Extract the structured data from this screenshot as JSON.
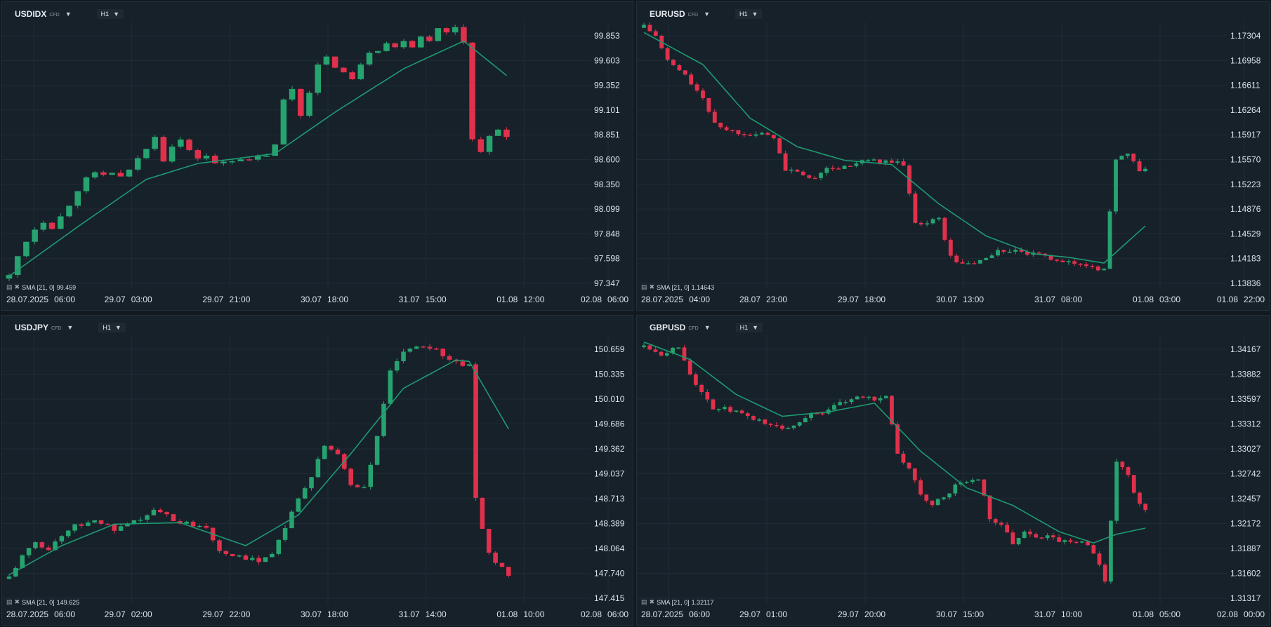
{
  "colors": {
    "up": "#26a36f",
    "down": "#e0314c",
    "sma": "#1e9a70",
    "grid": "#202c35"
  },
  "panels": [
    {
      "symbol": "USDIDX",
      "type_badge": "CFD",
      "timeframe": "H1",
      "indicator": {
        "label": "SMA [21, 0]",
        "value": "99.459"
      },
      "y_ticks": [
        "99.853",
        "99.603",
        "99.352",
        "99.101",
        "98.851",
        "98.600",
        "98.350",
        "98.099",
        "97.848",
        "97.598",
        "97.347"
      ],
      "x_ticks": [
        {
          "date": "28.07.2025",
          "time": "06:00"
        },
        {
          "date": "29.07",
          "time": "03:00"
        },
        {
          "date": "29.07",
          "time": "21:00"
        },
        {
          "date": "30.07",
          "time": "18:00"
        },
        {
          "date": "31.07",
          "time": "15:00"
        },
        {
          "date": "01.08",
          "time": "12:00"
        },
        {
          "date": "02.08",
          "time": "06:00"
        }
      ]
    },
    {
      "symbol": "EURUSD",
      "type_badge": "CFD",
      "timeframe": "H1",
      "indicator": {
        "label": "SMA [21, 0]",
        "value": "1.14643"
      },
      "y_ticks": [
        "1.17304",
        "1.16958",
        "1.16611",
        "1.16264",
        "1.15917",
        "1.15570",
        "1.15223",
        "1.14876",
        "1.14529",
        "1.14183",
        "1.13836"
      ],
      "x_ticks": [
        {
          "date": "28.07.2025",
          "time": "04:00"
        },
        {
          "date": "28.07",
          "time": "23:00"
        },
        {
          "date": "29.07",
          "time": "18:00"
        },
        {
          "date": "30.07",
          "time": "13:00"
        },
        {
          "date": "31.07",
          "time": "08:00"
        },
        {
          "date": "01.08",
          "time": "03:00"
        },
        {
          "date": "01.08",
          "time": "22:00"
        }
      ]
    },
    {
      "symbol": "USDJPY",
      "type_badge": "CFD",
      "timeframe": "H1",
      "indicator": {
        "label": "SMA [21, 0]",
        "value": "149.625"
      },
      "y_ticks": [
        "150.659",
        "150.335",
        "150.010",
        "149.686",
        "149.362",
        "149.037",
        "148.713",
        "148.389",
        "148.064",
        "147.740",
        "147.415"
      ],
      "x_ticks": [
        {
          "date": "28.07.2025",
          "time": "06:00"
        },
        {
          "date": "29.07",
          "time": "02:00"
        },
        {
          "date": "29.07",
          "time": "22:00"
        },
        {
          "date": "30.07",
          "time": "18:00"
        },
        {
          "date": "31.07",
          "time": "14:00"
        },
        {
          "date": "01.08",
          "time": "10:00"
        },
        {
          "date": "02.08",
          "time": "06:00"
        }
      ]
    },
    {
      "symbol": "GBPUSD",
      "type_badge": "CFD",
      "timeframe": "H1",
      "indicator": {
        "label": "SMA [21, 0]",
        "value": "1.32117"
      },
      "y_ticks": [
        "1.34167",
        "1.33882",
        "1.33597",
        "1.33312",
        "1.33027",
        "1.32742",
        "1.32457",
        "1.32172",
        "1.31887",
        "1.31602",
        "1.31317"
      ],
      "x_ticks": [
        {
          "date": "28.07.2025",
          "time": "06:00"
        },
        {
          "date": "29.07",
          "time": "01:00"
        },
        {
          "date": "29.07",
          "time": "20:00"
        },
        {
          "date": "30.07",
          "time": "15:00"
        },
        {
          "date": "31.07",
          "time": "10:00"
        },
        {
          "date": "01.08",
          "time": "05:00"
        },
        {
          "date": "02.08",
          "time": "00:00"
        }
      ]
    }
  ],
  "chart_data": [
    {
      "type": "candlestick",
      "title": "USDIDX H1",
      "ylim": [
        97.347,
        99.853
      ],
      "close_path": [
        [
          0,
          97.42
        ],
        [
          1,
          97.62
        ],
        [
          2,
          97.78
        ],
        [
          3,
          97.9
        ],
        [
          4,
          97.98
        ],
        [
          5,
          97.92
        ],
        [
          6,
          98.02
        ],
        [
          7,
          98.15
        ],
        [
          8,
          98.3
        ],
        [
          9,
          98.4
        ],
        [
          10,
          98.45
        ],
        [
          11,
          98.44
        ],
        [
          12,
          98.47
        ],
        [
          13,
          98.42
        ],
        [
          14,
          98.48
        ],
        [
          15,
          98.62
        ],
        [
          16,
          98.7
        ],
        [
          17,
          98.85
        ],
        [
          18,
          98.6
        ],
        [
          19,
          98.75
        ],
        [
          20,
          98.8
        ],
        [
          21,
          98.68
        ],
        [
          22,
          98.62
        ],
        [
          23,
          98.64
        ],
        [
          24,
          98.55
        ],
        [
          25,
          98.58
        ],
        [
          26,
          98.6
        ],
        [
          27,
          98.62
        ],
        [
          28,
          98.58
        ],
        [
          29,
          98.62
        ],
        [
          30,
          98.65
        ],
        [
          31,
          98.74
        ],
        [
          32,
          99.2
        ],
        [
          33,
          99.32
        ],
        [
          34,
          99.05
        ],
        [
          35,
          99.3
        ],
        [
          36,
          99.55
        ],
        [
          37,
          99.62
        ],
        [
          38,
          99.55
        ],
        [
          39,
          99.48
        ],
        [
          40,
          99.4
        ],
        [
          41,
          99.58
        ],
        [
          42,
          99.7
        ],
        [
          43,
          99.72
        ],
        [
          44,
          99.78
        ],
        [
          45,
          99.73
        ],
        [
          46,
          99.82
        ],
        [
          47,
          99.75
        ],
        [
          48,
          99.85
        ],
        [
          49,
          99.82
        ],
        [
          50,
          99.92
        ],
        [
          51,
          99.88
        ],
        [
          52,
          99.95
        ],
        [
          53,
          99.8
        ],
        [
          54,
          98.8
        ],
        [
          55,
          98.7
        ],
        [
          56,
          98.82
        ],
        [
          57,
          98.9
        ],
        [
          58,
          98.83
        ]
      ],
      "sma_path": [
        [
          0,
          97.42
        ],
        [
          8,
          97.92
        ],
        [
          16,
          98.4
        ],
        [
          22,
          98.56
        ],
        [
          31,
          98.66
        ],
        [
          38,
          99.08
        ],
        [
          46,
          99.52
        ],
        [
          53,
          99.8
        ],
        [
          58,
          99.45
        ]
      ]
    },
    {
      "type": "candlestick",
      "title": "EURUSD H1",
      "ylim": [
        1.13836,
        1.17304
      ],
      "close_path": [
        [
          0,
          1.1745
        ],
        [
          2,
          1.173
        ],
        [
          4,
          1.1695
        ],
        [
          6,
          1.1682
        ],
        [
          8,
          1.1665
        ],
        [
          10,
          1.164
        ],
        [
          12,
          1.161
        ],
        [
          14,
          1.1598
        ],
        [
          17,
          1.1595
        ],
        [
          19,
          1.1592
        ],
        [
          22,
          1.159
        ],
        [
          24,
          1.154
        ],
        [
          26,
          1.1542
        ],
        [
          28,
          1.1528
        ],
        [
          30,
          1.154
        ],
        [
          32,
          1.1545
        ],
        [
          34,
          1.1546
        ],
        [
          36,
          1.155
        ],
        [
          38,
          1.1556
        ],
        [
          40,
          1.1552
        ],
        [
          42,
          1.1555
        ],
        [
          44,
          1.1548
        ],
        [
          46,
          1.147
        ],
        [
          48,
          1.1468
        ],
        [
          50,
          1.1475
        ],
        [
          52,
          1.142
        ],
        [
          54,
          1.141
        ],
        [
          56,
          1.1412
        ],
        [
          58,
          1.142
        ],
        [
          60,
          1.1428
        ],
        [
          62,
          1.143
        ],
        [
          64,
          1.1426
        ],
        [
          66,
          1.1424
        ],
        [
          68,
          1.142
        ],
        [
          70,
          1.1418
        ],
        [
          72,
          1.1412
        ],
        [
          74,
          1.141
        ],
        [
          76,
          1.1408
        ],
        [
          78,
          1.1402
        ],
        [
          80,
          1.156
        ],
        [
          82,
          1.1565
        ],
        [
          84,
          1.154
        ],
        [
          85,
          1.1545
        ]
      ],
      "sma_path": [
        [
          0,
          1.1735
        ],
        [
          10,
          1.169
        ],
        [
          18,
          1.1615
        ],
        [
          26,
          1.1575
        ],
        [
          34,
          1.1556
        ],
        [
          42,
          1.155
        ],
        [
          50,
          1.1495
        ],
        [
          58,
          1.145
        ],
        [
          66,
          1.1425
        ],
        [
          72,
          1.142
        ],
        [
          78,
          1.1412
        ],
        [
          85,
          1.1464
        ]
      ]
    },
    {
      "type": "candlestick",
      "title": "USDJPY H1",
      "ylim": [
        147.415,
        150.659
      ],
      "close_path": [
        [
          0,
          147.7
        ],
        [
          2,
          147.95
        ],
        [
          4,
          148.15
        ],
        [
          6,
          148.05
        ],
        [
          8,
          148.25
        ],
        [
          10,
          148.35
        ],
        [
          12,
          148.42
        ],
        [
          14,
          148.4
        ],
        [
          16,
          148.3
        ],
        [
          18,
          148.35
        ],
        [
          20,
          148.45
        ],
        [
          22,
          148.55
        ],
        [
          24,
          148.5
        ],
        [
          26,
          148.4
        ],
        [
          28,
          148.38
        ],
        [
          30,
          148.35
        ],
        [
          32,
          148.05
        ],
        [
          34,
          147.98
        ],
        [
          36,
          147.9
        ],
        [
          38,
          147.92
        ],
        [
          40,
          148.0
        ],
        [
          42,
          148.35
        ],
        [
          44,
          148.7
        ],
        [
          46,
          149.0
        ],
        [
          48,
          149.4
        ],
        [
          50,
          149.3
        ],
        [
          52,
          148.9
        ],
        [
          54,
          148.85
        ],
        [
          56,
          149.5
        ],
        [
          58,
          150.4
        ],
        [
          60,
          150.6
        ],
        [
          62,
          150.7
        ],
        [
          64,
          150.7
        ],
        [
          66,
          150.6
        ],
        [
          68,
          150.48
        ],
        [
          70,
          150.45
        ],
        [
          71,
          148.7
        ],
        [
          73,
          148.0
        ],
        [
          75,
          147.8
        ],
        [
          76,
          147.72
        ]
      ],
      "sma_path": [
        [
          0,
          147.72
        ],
        [
          8,
          148.1
        ],
        [
          16,
          148.38
        ],
        [
          26,
          148.4
        ],
        [
          36,
          148.1
        ],
        [
          44,
          148.5
        ],
        [
          52,
          149.3
        ],
        [
          60,
          150.15
        ],
        [
          68,
          150.52
        ],
        [
          70,
          150.5
        ],
        [
          76,
          149.62
        ]
      ]
    },
    {
      "type": "candlestick",
      "title": "GBPUSD H1",
      "ylim": [
        1.31317,
        1.34167
      ],
      "close_path": [
        [
          0,
          1.3422
        ],
        [
          3,
          1.3412
        ],
        [
          6,
          1.342
        ],
        [
          8,
          1.339
        ],
        [
          10,
          1.3365
        ],
        [
          12,
          1.335
        ],
        [
          14,
          1.3348
        ],
        [
          16,
          1.3345
        ],
        [
          18,
          1.3338
        ],
        [
          20,
          1.3335
        ],
        [
          22,
          1.333
        ],
        [
          24,
          1.3325
        ],
        [
          26,
          1.333
        ],
        [
          28,
          1.334
        ],
        [
          30,
          1.3345
        ],
        [
          32,
          1.3345
        ],
        [
          34,
          1.3355
        ],
        [
          36,
          1.3358
        ],
        [
          38,
          1.3362
        ],
        [
          40,
          1.336
        ],
        [
          42,
          1.3365
        ],
        [
          44,
          1.3295
        ],
        [
          46,
          1.328
        ],
        [
          48,
          1.325
        ],
        [
          50,
          1.324
        ],
        [
          52,
          1.3245
        ],
        [
          54,
          1.326
        ],
        [
          56,
          1.3265
        ],
        [
          58,
          1.327
        ],
        [
          60,
          1.3225
        ],
        [
          62,
          1.3215
        ],
        [
          64,
          1.3195
        ],
        [
          66,
          1.321
        ],
        [
          68,
          1.32
        ],
        [
          70,
          1.3205
        ],
        [
          72,
          1.3198
        ],
        [
          74,
          1.3195
        ],
        [
          76,
          1.3198
        ],
        [
          78,
          1.3185
        ],
        [
          80,
          1.315
        ],
        [
          82,
          1.329
        ],
        [
          84,
          1.327
        ],
        [
          86,
          1.324
        ],
        [
          87,
          1.3232
        ]
      ],
      "sma_path": [
        [
          0,
          1.3425
        ],
        [
          8,
          1.3405
        ],
        [
          16,
          1.3365
        ],
        [
          24,
          1.334
        ],
        [
          32,
          1.3345
        ],
        [
          40,
          1.3355
        ],
        [
          48,
          1.33
        ],
        [
          56,
          1.3258
        ],
        [
          64,
          1.3238
        ],
        [
          72,
          1.3208
        ],
        [
          78,
          1.3195
        ],
        [
          82,
          1.3205
        ],
        [
          87,
          1.3212
        ]
      ]
    }
  ]
}
